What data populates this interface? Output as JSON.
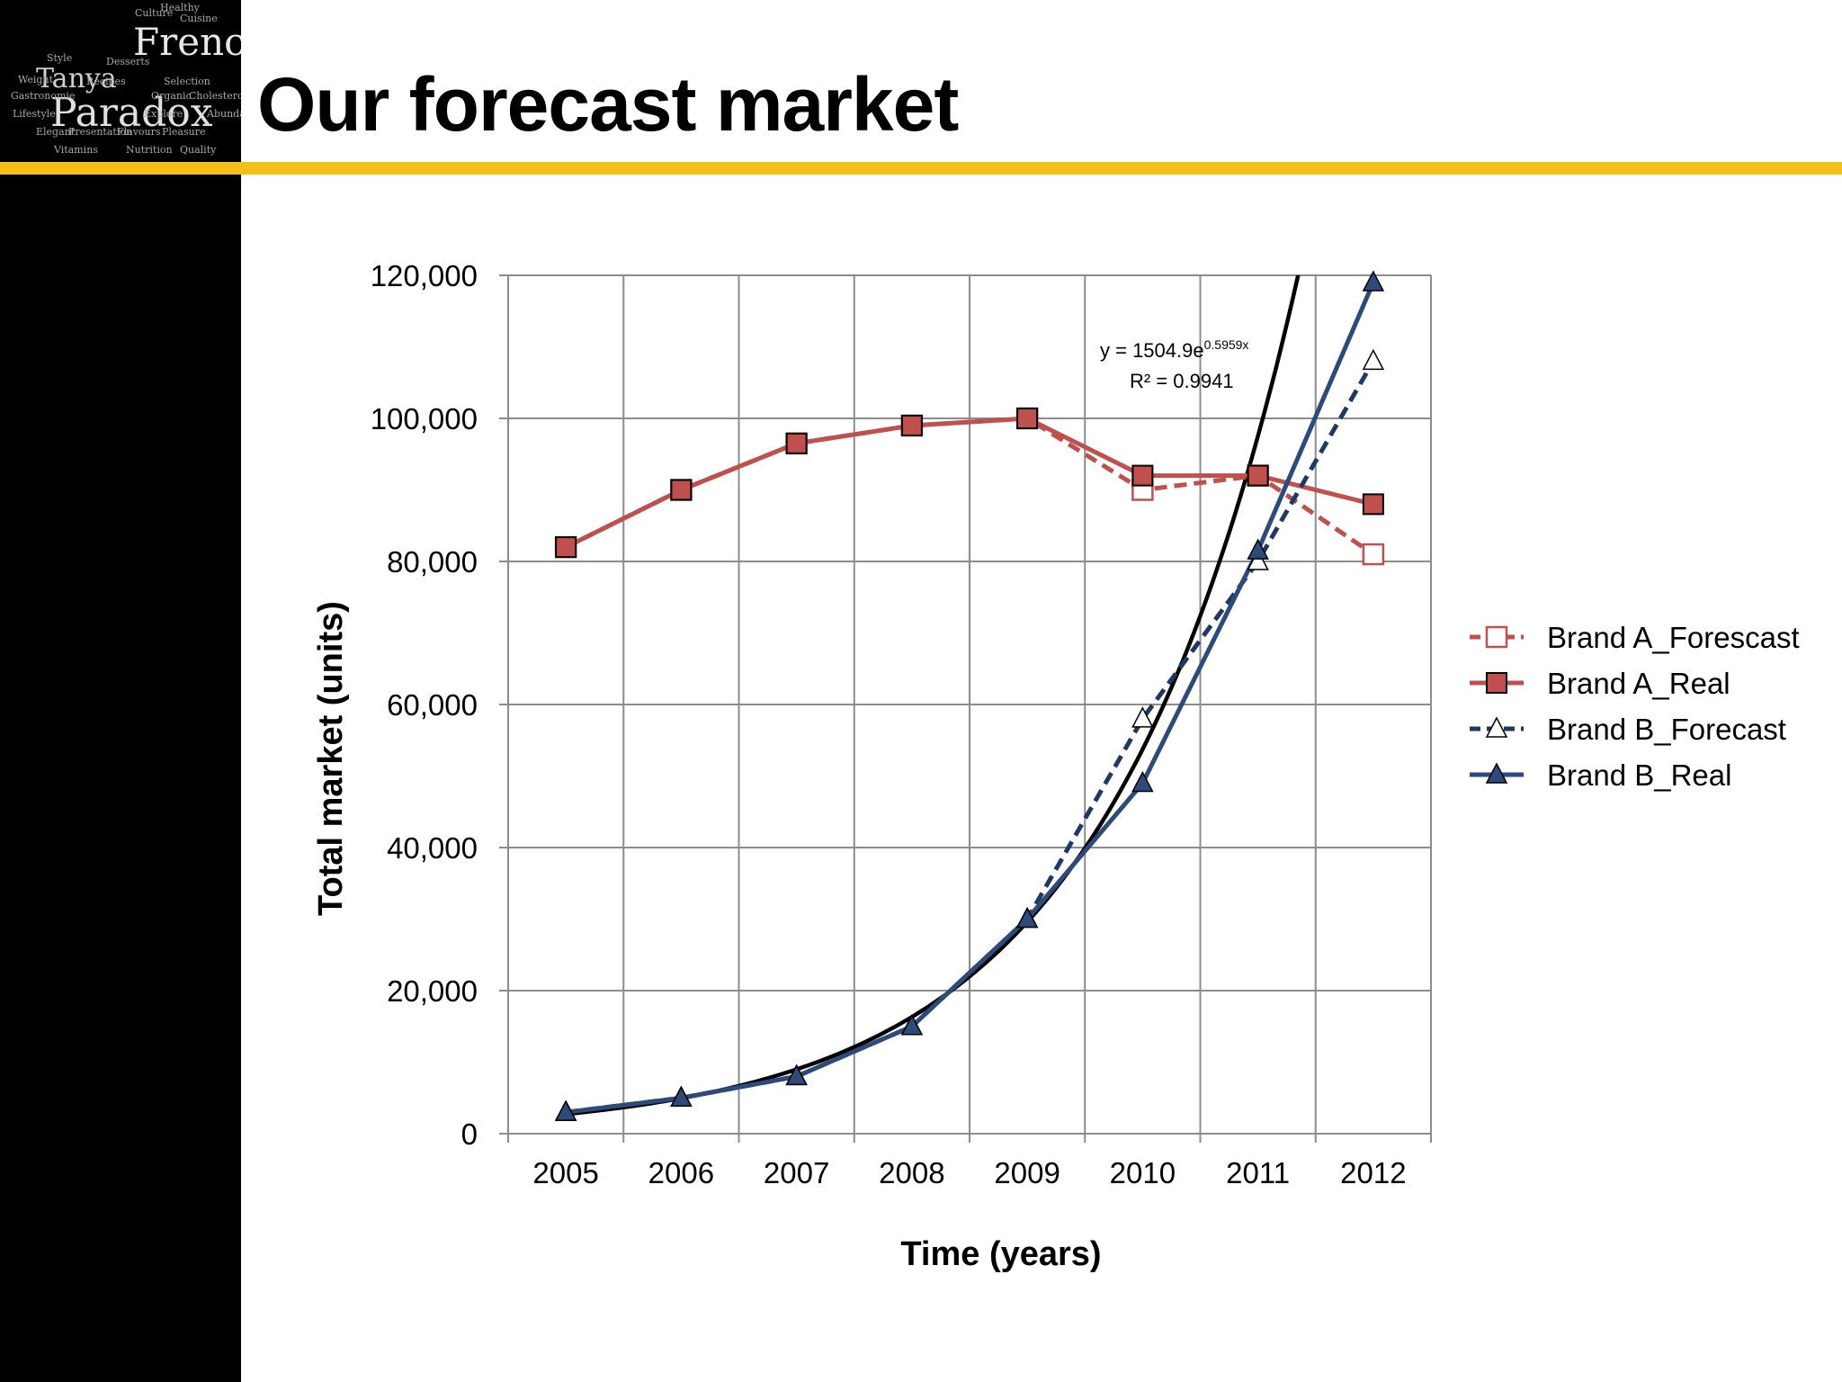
{
  "slide": {
    "title": "Our forecast market",
    "accent_color": "#f5bf1a",
    "band_color": "#000000"
  },
  "logo": {
    "main_words": [
      "French",
      "Tanya",
      "Paradox"
    ],
    "small_words": [
      "Healthy",
      "Cuisine",
      "Culture",
      "Style",
      "Desserts",
      "Gastronomie",
      "Selection",
      "Lifestyle",
      "Organic",
      "Cholesterol",
      "Explore",
      "Flavours",
      "Abundance",
      "Elegant",
      "Presentation",
      "Pleasure",
      "Weight",
      "Recipes",
      "Quality",
      "Nutrition",
      "Vitamins"
    ]
  },
  "chart_data": {
    "type": "line",
    "title": "",
    "xlabel": "Time (years)",
    "ylabel": "Total market (units)",
    "ylim": [
      0,
      120000
    ],
    "yticks": [
      0,
      20000,
      40000,
      60000,
      80000,
      100000,
      120000
    ],
    "ytick_labels": [
      "0",
      "20,000",
      "40,000",
      "60,000",
      "80,000",
      "100,000",
      "120,000"
    ],
    "categories": [
      "2005",
      "2006",
      "2007",
      "2008",
      "2009",
      "2010",
      "2011",
      "2012"
    ],
    "grid": true,
    "legend_position": "right",
    "series": [
      {
        "name": "Brand A_Forescast",
        "values": [
          82000,
          90000,
          96500,
          99000,
          100000,
          90000,
          92000,
          81000
        ],
        "color": "#c0504d",
        "dash": true,
        "marker": "square-open"
      },
      {
        "name": "Brand A_Real",
        "values": [
          82000,
          90000,
          96500,
          99000,
          100000,
          92000,
          92000,
          88000
        ],
        "color": "#c0504d",
        "dash": false,
        "marker": "square-filled"
      },
      {
        "name": "Brand B_Forecast",
        "values": [
          3000,
          5000,
          8000,
          15000,
          30000,
          58000,
          80000,
          108000
        ],
        "color": "#1f3864",
        "dash": true,
        "marker": "triangle-open"
      },
      {
        "name": "Brand B_Real",
        "values": [
          3000,
          5000,
          8000,
          15000,
          30000,
          49000,
          81500,
          119000
        ],
        "color": "#2e4a7a",
        "dash": false,
        "marker": "triangle-filled"
      }
    ],
    "trendline": {
      "a": 1504.9,
      "b": 0.5959,
      "color": "#000000",
      "equation_prefix": "y = 1504.9e",
      "equation_exponent": "0.5959x",
      "r_squared": "R² = 0.9941"
    }
  }
}
